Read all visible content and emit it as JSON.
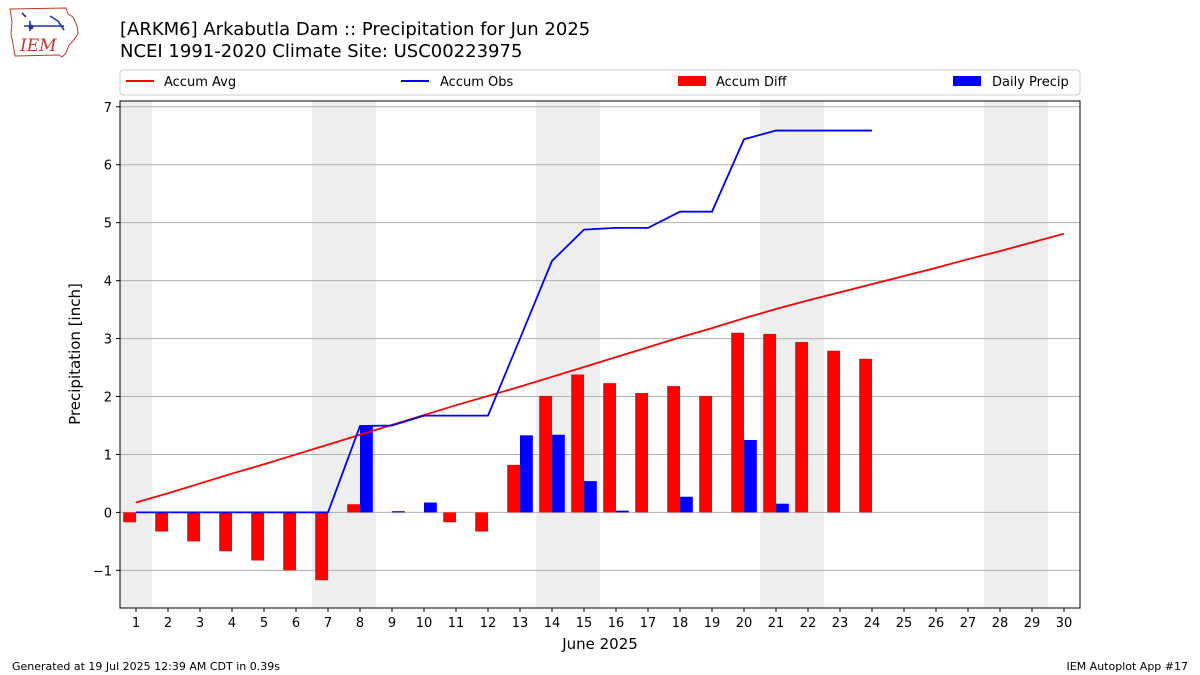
{
  "header": {
    "logo_text": "IEM",
    "title_line1": "[ARKM6] Arkabutla Dam :: Precipitation for Jun 2025",
    "title_line2": "NCEI 1991-2020 Climate Site: USC00223975"
  },
  "footer": {
    "generated": "Generated at 19 Jul 2025 12:39 AM CDT in 0.39s",
    "app": "IEM Autoplot App #17"
  },
  "colors": {
    "avg": "#ff0000",
    "obs": "#0000ff",
    "diff": "#ff0000",
    "daily": "#0000ff",
    "weekend_shade": "#eeeeee",
    "grid": "#b0b0b0"
  },
  "chart_data": {
    "type": "bar",
    "xlabel": "June 2025",
    "ylabel": "Precipitation [inch]",
    "xlim": [
      0.5,
      30.5
    ],
    "ylim": [
      -1.65,
      7.1
    ],
    "yticks": [
      -1,
      0,
      1,
      2,
      3,
      4,
      5,
      6,
      7
    ],
    "ytick_labels": [
      "−1",
      "0",
      "1",
      "2",
      "3",
      "4",
      "5",
      "6",
      "7"
    ],
    "grid": "horizontal",
    "legend_position": "top",
    "days": [
      1,
      2,
      3,
      4,
      5,
      6,
      7,
      8,
      9,
      10,
      11,
      12,
      13,
      14,
      15,
      16,
      17,
      18,
      19,
      20,
      21,
      22,
      23,
      24,
      25,
      26,
      27,
      28,
      29,
      30
    ],
    "weekend_spans": [
      [
        0.5,
        1.5
      ],
      [
        6.5,
        8.5
      ],
      [
        13.5,
        15.5
      ],
      [
        20.5,
        22.5
      ],
      [
        27.5,
        29.5
      ]
    ],
    "series": [
      {
        "name": "Accum Avg",
        "kind": "line",
        "x": [
          1,
          2,
          3,
          4,
          5,
          6,
          7,
          8,
          9,
          10,
          11,
          12,
          13,
          14,
          15,
          16,
          17,
          18,
          19,
          20,
          21,
          22,
          23,
          24,
          25,
          26,
          27,
          28,
          29,
          30
        ],
        "values": [
          0.17,
          0.33,
          0.5,
          0.67,
          0.83,
          1.0,
          1.17,
          1.34,
          1.51,
          1.68,
          1.85,
          2.01,
          2.17,
          2.34,
          2.51,
          2.68,
          2.85,
          3.02,
          3.18,
          3.35,
          3.51,
          3.66,
          3.8,
          3.94,
          4.08,
          4.22,
          4.37,
          4.51,
          4.66,
          4.81
        ]
      },
      {
        "name": "Accum Obs",
        "kind": "line",
        "x": [
          1,
          2,
          3,
          4,
          5,
          6,
          7,
          8,
          9,
          10,
          11,
          12,
          13,
          14,
          15,
          16,
          17,
          18,
          19,
          20,
          21,
          22,
          23,
          24
        ],
        "values": [
          0,
          0,
          0,
          0,
          0,
          0,
          0,
          1.49,
          1.5,
          1.67,
          1.67,
          1.67,
          3.0,
          4.34,
          4.88,
          4.91,
          4.91,
          5.19,
          5.19,
          6.44,
          6.59,
          6.59,
          6.59,
          6.59
        ]
      },
      {
        "name": "Accum Diff",
        "kind": "bar",
        "x": [
          1,
          2,
          3,
          4,
          5,
          6,
          7,
          8,
          9,
          10,
          11,
          12,
          13,
          14,
          15,
          16,
          17,
          18,
          19,
          20,
          21,
          22,
          23,
          24
        ],
        "values": [
          -0.17,
          -0.33,
          -0.5,
          -0.67,
          -0.83,
          -1.0,
          -1.17,
          0.14,
          0,
          0,
          -0.17,
          -0.33,
          0.82,
          2.01,
          2.38,
          2.23,
          2.06,
          2.18,
          2.01,
          3.1,
          3.08,
          2.94,
          2.79,
          2.65
        ]
      },
      {
        "name": "Daily Precip",
        "kind": "bar",
        "x": [
          1,
          2,
          3,
          4,
          5,
          6,
          7,
          8,
          9,
          10,
          11,
          12,
          13,
          14,
          15,
          16,
          17,
          18,
          19,
          20,
          21,
          22,
          23,
          24
        ],
        "values": [
          0,
          0,
          0,
          0,
          0,
          0,
          0,
          1.49,
          0.01,
          0.17,
          0,
          0,
          1.33,
          1.34,
          0.54,
          0.03,
          0,
          0.27,
          0,
          1.25,
          0.15,
          0,
          0,
          0
        ]
      }
    ]
  }
}
